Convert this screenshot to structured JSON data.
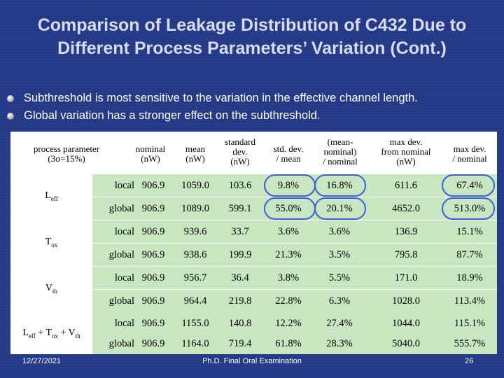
{
  "title_line1": "Comparison of Leakage Distribution of C432 Due to",
  "title_line2": "Different Process Parameters’ Variation (Cont.)",
  "bullets": [
    "Subthreshold is most sensitive to the variation in the effective channel length.",
    "Global variation has a stronger effect on the subthreshold."
  ],
  "table": {
    "header": {
      "param": [
        "process parameter",
        "(3σ=15%)"
      ],
      "cols": [
        [
          "nominal",
          "(nW)"
        ],
        [
          "mean",
          "(nW)"
        ],
        [
          "standard",
          "dev.",
          "(nW)"
        ],
        [
          "std. dev.",
          "/ mean"
        ],
        [
          "(mean-",
          "nominal)",
          "/ nominal"
        ],
        [
          "max dev.",
          "from nominal",
          "(nW)"
        ],
        [
          "max dev.",
          "/ nominal"
        ]
      ]
    },
    "groups": [
      {
        "param": "L",
        "sub": "eff",
        "rows": [
          {
            "scope": "local",
            "cells": [
              "906.9",
              "1059.0",
              "103.6",
              "9.8%",
              "16.8%",
              "611.6",
              "67.4%"
            ]
          },
          {
            "scope": "global",
            "cells": [
              "906.9",
              "1089.0",
              "599.1",
              "55.0%",
              "20.1%",
              "4652.0",
              "513.0%"
            ]
          }
        ]
      },
      {
        "param": "T",
        "sub": "ox",
        "rows": [
          {
            "scope": "local",
            "cells": [
              "906.9",
              "939.6",
              "33.7",
              "3.6%",
              "3.6%",
              "136.9",
              "15.1%"
            ]
          },
          {
            "scope": "global",
            "cells": [
              "906.9",
              "938.6",
              "199.9",
              "21.3%",
              "3.5%",
              "795.8",
              "87.7%"
            ]
          }
        ]
      },
      {
        "param": "V",
        "sub": "th",
        "rows": [
          {
            "scope": "local",
            "cells": [
              "906.9",
              "956.7",
              "36.4",
              "3.8%",
              "5.5%",
              "171.0",
              "18.9%"
            ]
          },
          {
            "scope": "global",
            "cells": [
              "906.9",
              "964.4",
              "219.8",
              "22.8%",
              "6.3%",
              "1028.0",
              "113.4%"
            ]
          }
        ]
      },
      {
        "param": "L",
        "sub": "eff",
        "param2": "+ T",
        "sub2": "ox",
        "param3": "+ V",
        "sub3": "th",
        "rows": [
          {
            "scope": "local",
            "cells": [
              "906.9",
              "1155.0",
              "140.8",
              "12.2%",
              "27.4%",
              "1044.0",
              "115.1%"
            ]
          },
          {
            "scope": "global",
            "cells": [
              "906.9",
              "1164.0",
              "719.4",
              "61.8%",
              "28.3%",
              "5040.0",
              "555.7%"
            ]
          }
        ]
      }
    ]
  },
  "footer": {
    "date": "12/27/2021",
    "center": "Ph.D. Final Oral Examination",
    "page": "26"
  }
}
